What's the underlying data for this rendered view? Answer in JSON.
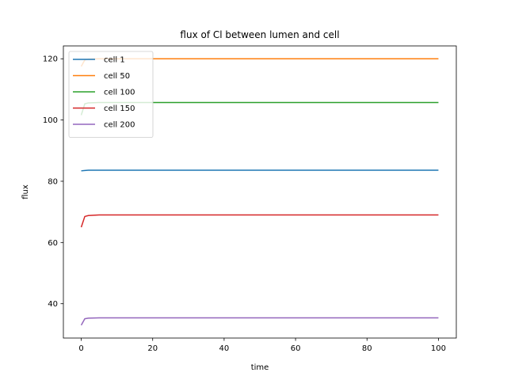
{
  "chart_data": {
    "type": "line",
    "title": "flux of Cl between lumen and cell",
    "xlabel": "time",
    "ylabel": "flux",
    "xlim": [
      -5,
      105
    ],
    "ylim": [
      28.8,
      124.2
    ],
    "xticks": [
      0,
      20,
      40,
      60,
      80,
      100
    ],
    "yticks": [
      40,
      60,
      80,
      100,
      120
    ],
    "grid": false,
    "legend_placement": "upper-left",
    "series": [
      {
        "name": "cell 1",
        "color": "#1f77b4",
        "x": [
          0,
          1,
          2,
          5,
          10,
          100
        ],
        "y": [
          83.4,
          83.5,
          83.6,
          83.6,
          83.6,
          83.6
        ]
      },
      {
        "name": "cell 50",
        "color": "#ff7f0e",
        "x": [
          0,
          1,
          2,
          5,
          10,
          100
        ],
        "y": [
          117.5,
          119.6,
          119.9,
          120.0,
          120.0,
          120.0
        ]
      },
      {
        "name": "cell 100",
        "color": "#2ca02c",
        "x": [
          0,
          1,
          2,
          5,
          10,
          100
        ],
        "y": [
          101.6,
          105.3,
          105.6,
          105.7,
          105.7,
          105.7
        ]
      },
      {
        "name": "cell 150",
        "color": "#d62728",
        "x": [
          0,
          1,
          2,
          5,
          10,
          100
        ],
        "y": [
          65.0,
          68.5,
          68.8,
          69.0,
          69.0,
          69.0
        ]
      },
      {
        "name": "cell 200",
        "color": "#9467bd",
        "x": [
          0,
          1,
          2,
          5,
          10,
          100
        ],
        "y": [
          33.0,
          35.1,
          35.3,
          35.4,
          35.4,
          35.4
        ]
      }
    ]
  }
}
